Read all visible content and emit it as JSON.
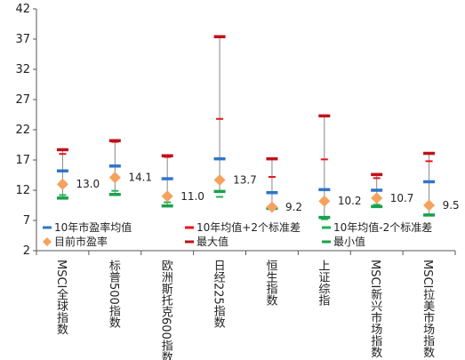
{
  "chart_data": {
    "type": "scatter",
    "title": "",
    "xlabel": "",
    "ylabel": "",
    "ylim": [
      2,
      42
    ],
    "yticks": [
      2,
      7,
      12,
      17,
      22,
      27,
      32,
      37,
      42
    ],
    "grid": false,
    "legend_position": "inside-bottom",
    "categories": [
      "MSCI全球指数",
      "标普500指数",
      "欧洲斯托克600指数",
      "日经225指数",
      "恒生指数",
      "上证综指",
      "MSCI新兴市场指数",
      "MSCI拉美市场指数"
    ],
    "series": [
      {
        "name": "10年市盈率均值",
        "marker": "dash",
        "color": "#2f75c9",
        "values": [
          15.2,
          16.0,
          13.9,
          17.2,
          11.6,
          12.1,
          12.0,
          13.4
        ]
      },
      {
        "name": "10年均值+2个标准差",
        "marker": "small-dash",
        "color": "#e8141c",
        "values": [
          18.0,
          20.0,
          17.5,
          23.8,
          14.2,
          17.1,
          14.0,
          16.8
        ]
      },
      {
        "name": "10年均值-2个标准差",
        "marker": "small-dash",
        "color": "#1fb358",
        "values": [
          11.2,
          11.9,
          10.0,
          10.9,
          9.1,
          7.2,
          9.6,
          7.8
        ]
      },
      {
        "name": "目前市盈率",
        "marker": "diamond",
        "color": "#f5a25d",
        "values": [
          13.0,
          14.1,
          11.0,
          13.7,
          9.2,
          10.2,
          10.7,
          9.5
        ]
      },
      {
        "name": "最大值",
        "marker": "dash",
        "color": "#c0121a",
        "values": [
          18.7,
          20.2,
          17.7,
          37.4,
          17.2,
          24.3,
          14.6,
          18.1
        ]
      },
      {
        "name": "最小值",
        "marker": "dash",
        "color": "#1aa14c",
        "values": [
          10.7,
          11.3,
          9.4,
          11.8,
          9.0,
          7.5,
          9.3,
          7.9
        ]
      }
    ],
    "data_labels": [
      "13.0",
      "14.1",
      "11.0",
      "13.7",
      "9.2",
      "10.2",
      "10.7",
      "9.5"
    ],
    "range_line_color": "#888888"
  }
}
